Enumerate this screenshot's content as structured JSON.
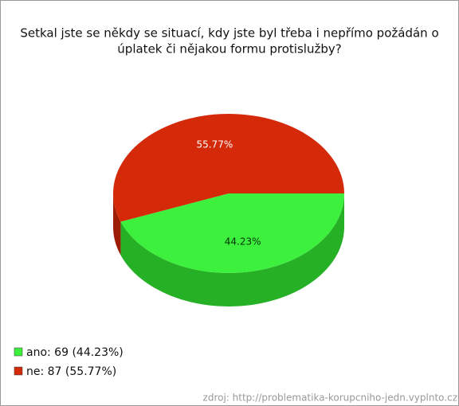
{
  "chart_data": {
    "type": "pie",
    "title": [
      "Setkal jste se někdy se situací, kdy jste byl třeba i nepřímo požádán o",
      "úplatek či nějakou formu protislužby?"
    ],
    "categories": [
      "ano",
      "ne"
    ],
    "values": [
      44.23,
      55.77
    ],
    "value_labels": [
      "44.23%",
      "55.77%"
    ],
    "colors": [
      "#3ef03e",
      "#d42a0a"
    ],
    "side_colors": [
      "#25b025",
      "#9c1c05"
    ],
    "label_colors": [
      "#003300",
      "#ffffff"
    ],
    "legend_labels": [
      "ano: 69 (44.23%)",
      "ne: 87 (55.77%)"
    ],
    "source": "zdroj: http://problematika-korupcniho-jedn.vyplnto.cz"
  }
}
